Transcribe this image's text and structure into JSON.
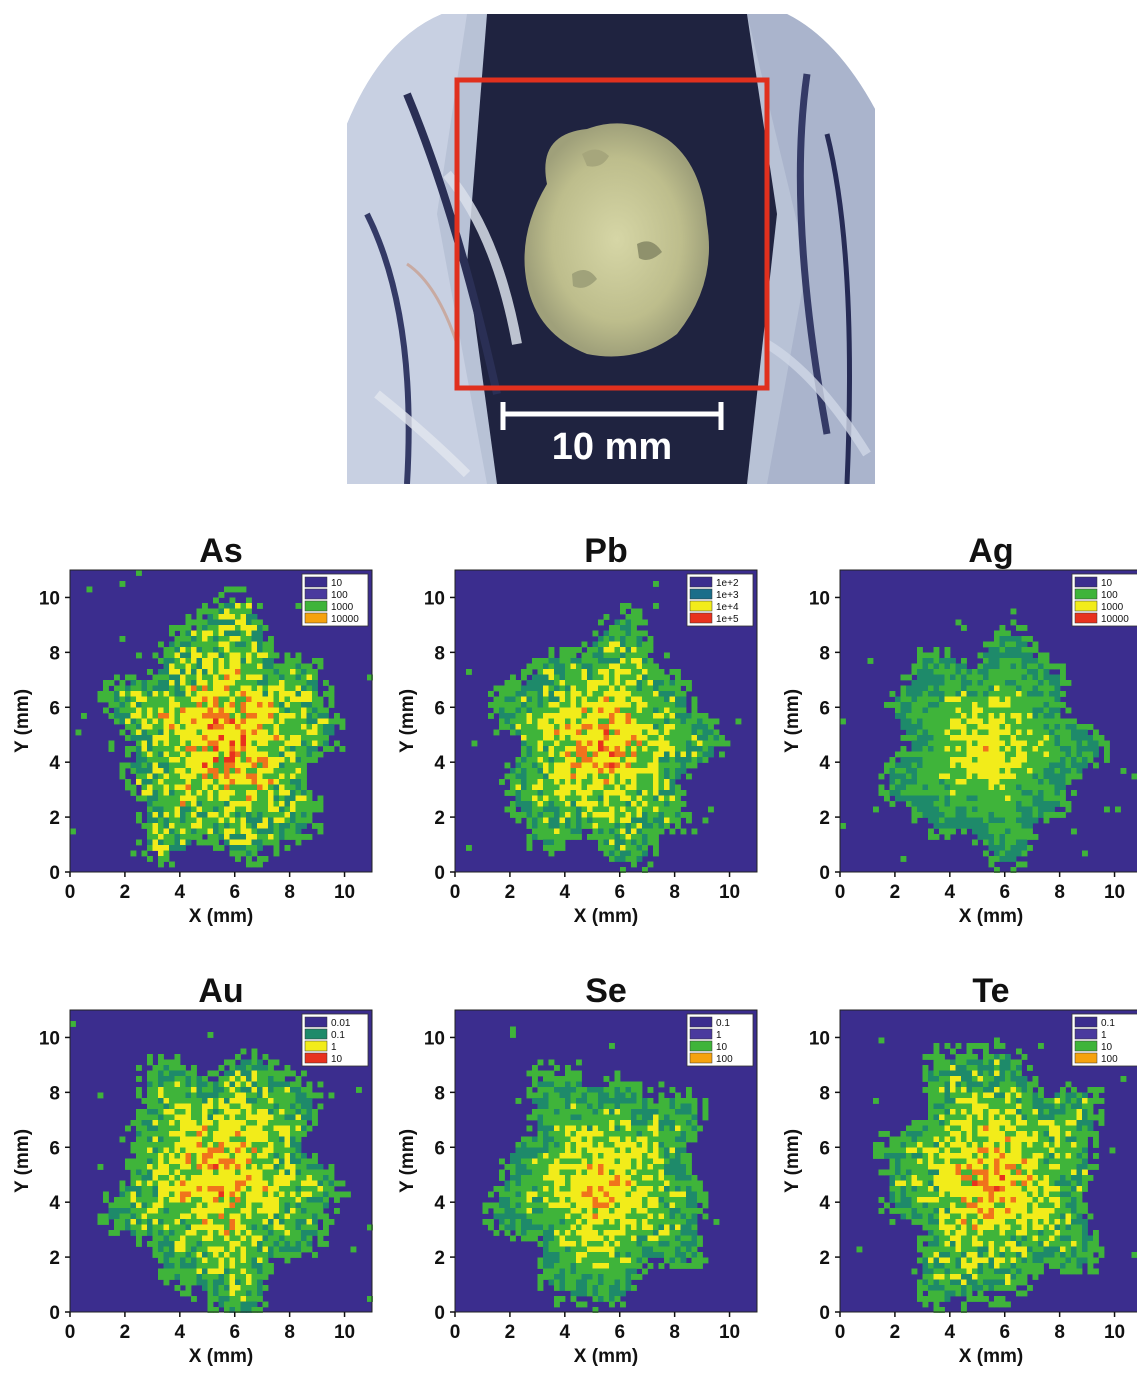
{
  "photo": {
    "scale_bar_label": "10 mm",
    "colors": {
      "frame": "#e0301e",
      "scale_bar": "#ffffff",
      "rock_dark": "#1f2340",
      "vein_light": "#d8e0ee",
      "mineral": "#c9c99a"
    }
  },
  "palette": {
    "background": "#3b2d8e",
    "low": "#1e8a6a",
    "mid": "#3fb43a",
    "high": "#f2ec1a",
    "peak": "#f0731c",
    "max": "#e8321e"
  },
  "chart_data": [
    {
      "type": "heatmap",
      "title": "As",
      "xlabel": "X (mm)",
      "ylabel": "Y (mm)",
      "xlim": [
        0,
        11
      ],
      "ylim": [
        0,
        11
      ],
      "xticks": [
        "0",
        "2",
        "4",
        "6",
        "8",
        "10"
      ],
      "yticks": [
        "0",
        "2",
        "4",
        "6",
        "8",
        "10"
      ],
      "legend": {
        "position": "top-right",
        "entries": [
          {
            "label": "10",
            "color": "#3b2d8e"
          },
          {
            "label": "100",
            "color": "#4a3a9e"
          },
          {
            "label": "1000",
            "color": "#3fb43a"
          },
          {
            "label": "10000",
            "color": "#f5a20e"
          }
        ]
      },
      "intensity": "high",
      "center_mm": [
        5.6,
        4.9
      ],
      "radius_mm": [
        3.6,
        4.3
      ]
    },
    {
      "type": "heatmap",
      "title": "Pb",
      "xlabel": "X (mm)",
      "ylabel": "Y (mm)",
      "xlim": [
        0,
        11
      ],
      "ylim": [
        0,
        11
      ],
      "xticks": [
        "0",
        "2",
        "4",
        "6",
        "8",
        "10"
      ],
      "yticks": [
        "0",
        "2",
        "4",
        "6",
        "8",
        "10"
      ],
      "legend": {
        "position": "top-right",
        "entries": [
          {
            "label": "1e+2",
            "color": "#3b2d8e"
          },
          {
            "label": "1e+3",
            "color": "#1a6e8a"
          },
          {
            "label": "1e+4",
            "color": "#f2ec1a"
          },
          {
            "label": "1e+5",
            "color": "#e8321e"
          }
        ]
      },
      "intensity": "mid-high",
      "center_mm": [
        5.4,
        4.6
      ],
      "radius_mm": [
        3.5,
        3.9
      ]
    },
    {
      "type": "heatmap",
      "title": "Ag",
      "xlabel": "X (mm)",
      "ylabel": "Y (mm)",
      "xlim": [
        0,
        11
      ],
      "ylim": [
        0,
        11
      ],
      "xticks": [
        "0",
        "2",
        "4",
        "6",
        "8",
        "10"
      ],
      "yticks": [
        "0",
        "2",
        "4",
        "6",
        "8",
        "10"
      ],
      "legend": {
        "position": "top-right",
        "entries": [
          {
            "label": "10",
            "color": "#3b2d8e"
          },
          {
            "label": "100",
            "color": "#3fb43a"
          },
          {
            "label": "1000",
            "color": "#f2ec1a"
          },
          {
            "label": "10000",
            "color": "#e8321e"
          }
        ]
      },
      "intensity": "low",
      "center_mm": [
        5.4,
        4.6
      ],
      "radius_mm": [
        3.4,
        3.6
      ]
    },
    {
      "type": "heatmap",
      "title": "Au",
      "xlabel": "X (mm)",
      "ylabel": "Y (mm)",
      "xlim": [
        0,
        11
      ],
      "ylim": [
        0,
        11
      ],
      "xticks": [
        "0",
        "2",
        "4",
        "6",
        "8",
        "10"
      ],
      "yticks": [
        "0",
        "2",
        "4",
        "6",
        "8",
        "10"
      ],
      "legend": {
        "position": "top-right",
        "entries": [
          {
            "label": "0.01",
            "color": "#3b2d8e"
          },
          {
            "label": "0.1",
            "color": "#1e8a6a"
          },
          {
            "label": "1",
            "color": "#f2ec1a"
          },
          {
            "label": "10",
            "color": "#e8321e"
          }
        ]
      },
      "intensity": "mid-high",
      "center_mm": [
        5.6,
        4.9
      ],
      "radius_mm": [
        3.6,
        4.3
      ]
    },
    {
      "type": "heatmap",
      "title": "Se",
      "xlabel": "X (mm)",
      "ylabel": "Y (mm)",
      "xlim": [
        0,
        11
      ],
      "ylim": [
        0,
        11
      ],
      "xticks": [
        "0",
        "2",
        "4",
        "6",
        "8",
        "10"
      ],
      "yticks": [
        "0",
        "2",
        "4",
        "6",
        "8",
        "10"
      ],
      "legend": {
        "position": "top-right",
        "entries": [
          {
            "label": "0.1",
            "color": "#3b2d8e"
          },
          {
            "label": "1",
            "color": "#4a3a9e"
          },
          {
            "label": "10",
            "color": "#3fb43a"
          },
          {
            "label": "100",
            "color": "#f5a20e"
          }
        ]
      },
      "intensity": "mid",
      "center_mm": [
        5.4,
        4.6
      ],
      "radius_mm": [
        3.5,
        3.9
      ]
    },
    {
      "type": "heatmap",
      "title": "Te",
      "xlabel": "X (mm)",
      "ylabel": "Y (mm)",
      "xlim": [
        0,
        11
      ],
      "ylim": [
        0,
        11
      ],
      "xticks": [
        "0",
        "2",
        "4",
        "6",
        "8",
        "10"
      ],
      "yticks": [
        "0",
        "2",
        "4",
        "6",
        "8",
        "10"
      ],
      "legend": {
        "position": "top-right",
        "entries": [
          {
            "label": "0.1",
            "color": "#3b2d8e"
          },
          {
            "label": "1",
            "color": "#4a3a9e"
          },
          {
            "label": "10",
            "color": "#3fb43a"
          },
          {
            "label": "100",
            "color": "#f5a20e"
          }
        ]
      },
      "intensity": "mid-high",
      "center_mm": [
        5.6,
        4.9
      ],
      "radius_mm": [
        3.6,
        4.3
      ]
    }
  ]
}
